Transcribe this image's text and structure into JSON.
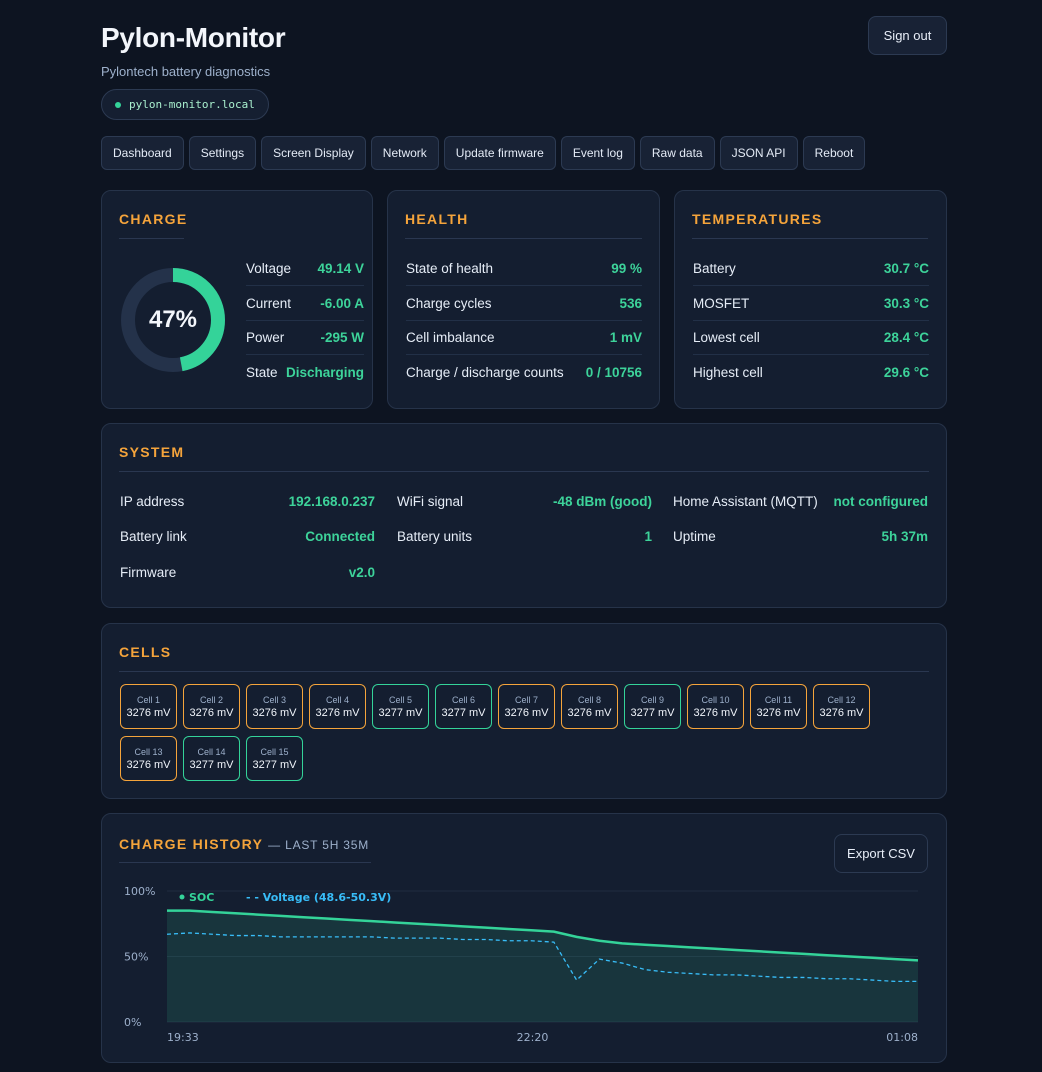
{
  "header": {
    "title": "Pylon-Monitor",
    "subtitle": "Pylontech battery diagnostics",
    "host": "pylon-monitor.local",
    "sign_out": "Sign out"
  },
  "nav": [
    "Dashboard",
    "Settings",
    "Screen Display",
    "Network",
    "Update firmware",
    "Event log",
    "Raw data",
    "JSON API",
    "Reboot"
  ],
  "charge": {
    "title": "CHARGE",
    "soc_label": "47%",
    "soc_fraction": 0.47,
    "rows": [
      {
        "label": "Voltage",
        "value": "49.14 V"
      },
      {
        "label": "Current",
        "value": "-6.00 A"
      },
      {
        "label": "Power",
        "value": "-295 W"
      },
      {
        "label": "State",
        "value": "Discharging"
      }
    ]
  },
  "health": {
    "title": "HEALTH",
    "rows": [
      {
        "label": "State of health",
        "value": "99 %"
      },
      {
        "label": "Charge cycles",
        "value": "536"
      },
      {
        "label": "Cell imbalance",
        "value": "1 mV"
      },
      {
        "label": "Charge / discharge counts",
        "value": "0 / 10756"
      }
    ]
  },
  "temperatures": {
    "title": "TEMPERATURES",
    "rows": [
      {
        "label": "Battery",
        "value": "30.7 °C"
      },
      {
        "label": "MOSFET",
        "value": "30.3 °C"
      },
      {
        "label": "Lowest cell",
        "value": "28.4 °C"
      },
      {
        "label": "Highest cell",
        "value": "29.6 °C"
      }
    ]
  },
  "system": {
    "title": "SYSTEM",
    "rows": [
      {
        "label": "IP address",
        "value": "192.168.0.237"
      },
      {
        "label": "WiFi signal",
        "value": "-48 dBm (good)"
      },
      {
        "label": "Home Assistant (MQTT)",
        "value": "not configured"
      },
      {
        "label": "Battery link",
        "value": "Connected"
      },
      {
        "label": "Battery units",
        "value": "1"
      },
      {
        "label": "Uptime",
        "value": "5h 37m"
      },
      {
        "label": "Firmware",
        "value": "v2.0"
      }
    ]
  },
  "cells": {
    "title": "CELLS",
    "items": [
      {
        "name": "Cell 1",
        "value": "3276 mV",
        "high": false
      },
      {
        "name": "Cell 2",
        "value": "3276 mV",
        "high": false
      },
      {
        "name": "Cell 3",
        "value": "3276 mV",
        "high": false
      },
      {
        "name": "Cell 4",
        "value": "3276 mV",
        "high": false
      },
      {
        "name": "Cell 5",
        "value": "3277 mV",
        "high": true
      },
      {
        "name": "Cell 6",
        "value": "3277 mV",
        "high": true
      },
      {
        "name": "Cell 7",
        "value": "3276 mV",
        "high": false
      },
      {
        "name": "Cell 8",
        "value": "3276 mV",
        "high": false
      },
      {
        "name": "Cell 9",
        "value": "3277 mV",
        "high": true
      },
      {
        "name": "Cell 10",
        "value": "3276 mV",
        "high": false
      },
      {
        "name": "Cell 11",
        "value": "3276 mV",
        "high": false
      },
      {
        "name": "Cell 12",
        "value": "3276 mV",
        "high": false
      },
      {
        "name": "Cell 13",
        "value": "3276 mV",
        "high": false
      },
      {
        "name": "Cell 14",
        "value": "3277 mV",
        "high": true
      },
      {
        "name": "Cell 15",
        "value": "3277 mV",
        "high": true
      }
    ]
  },
  "history": {
    "title": "CHARGE HISTORY",
    "subtitle": "— LAST 5H 35M",
    "export": "Export CSV"
  },
  "chart_data": {
    "type": "line",
    "y_ticks": [
      "100%",
      "50%",
      "0%"
    ],
    "x_ticks": [
      "19:33",
      "22:20",
      "01:08"
    ],
    "ylim": [
      0,
      100
    ],
    "legend": [
      "SOC",
      "- - Voltage (48.6-50.3V)"
    ],
    "grid": true,
    "colors": {
      "soc": "#34d399",
      "voltage": "#38bdf8"
    },
    "series": [
      {
        "name": "SOC",
        "values": [
          85,
          85,
          84,
          83,
          82,
          81,
          80,
          79,
          78,
          77,
          76,
          75,
          74,
          73,
          72,
          71,
          70,
          69,
          65,
          62,
          60,
          59,
          58,
          57,
          56,
          55,
          54,
          53,
          52,
          51,
          50,
          49,
          48,
          47
        ]
      },
      {
        "name": "Voltage (48.6-50.3V)",
        "values": [
          67,
          68,
          67,
          66,
          66,
          65,
          65,
          65,
          65,
          65,
          64,
          64,
          64,
          63,
          63,
          62,
          62,
          61,
          32,
          48,
          45,
          40,
          38,
          37,
          36,
          36,
          35,
          34,
          34,
          33,
          33,
          32,
          31,
          31
        ]
      }
    ]
  }
}
